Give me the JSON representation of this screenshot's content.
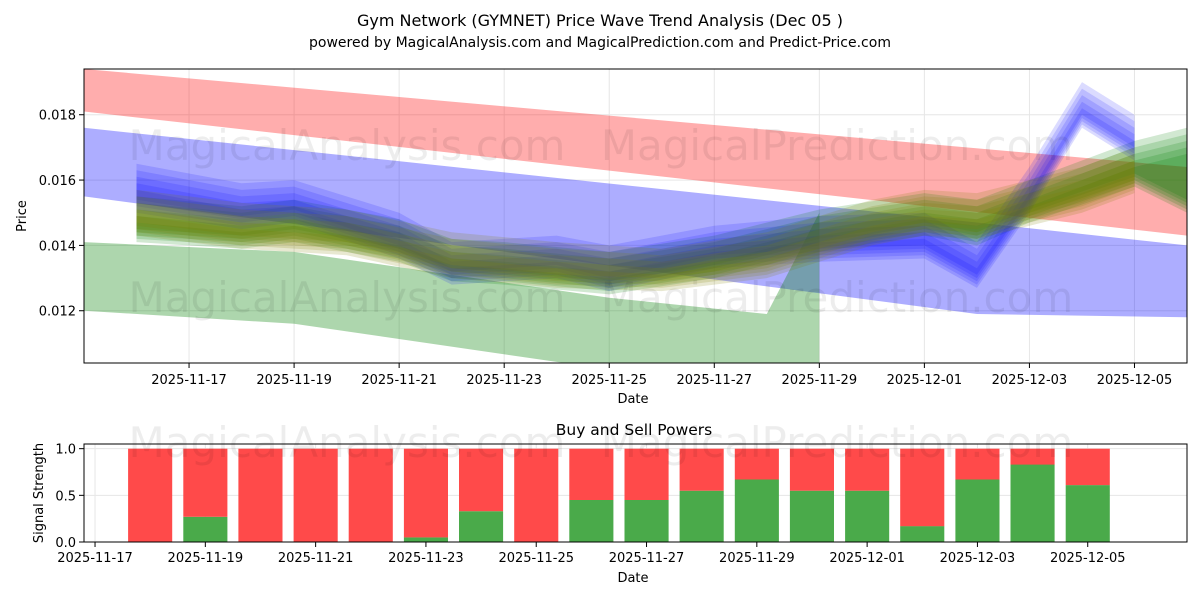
{
  "chart_data": [
    {
      "type": "area",
      "title": "Gym Network (GYMNET) Price Wave Trend Analysis (Dec 05 )",
      "subtitle": "powered by MagicalAnalysis.com and MagicalPrediction.com and Predict-Price.com",
      "xlabel": "Date",
      "ylabel": "Price",
      "x_range": [
        "2025-11-15",
        "2025-12-06"
      ],
      "ylim": [
        0.0104,
        0.0194
      ],
      "x_ticks": [
        "2025-11-17",
        "2025-11-19",
        "2025-11-21",
        "2025-11-23",
        "2025-11-25",
        "2025-11-27",
        "2025-11-29",
        "2025-12-01",
        "2025-12-03",
        "2025-12-05"
      ],
      "y_ticks": [
        "0.012",
        "0.014",
        "0.016",
        "0.018"
      ],
      "grid": true,
      "watermarks": [
        "MagicalAnalysis.com",
        "MagicalPrediction.com",
        "MagicalAnalysis.com",
        "MagicalPrediction.com"
      ],
      "bands": [
        {
          "name": "red-band",
          "color": "#ff0000",
          "opacity": 0.32,
          "x": [
            "2025-11-15",
            "2025-12-06"
          ],
          "upper": [
            0.0194,
            0.0164
          ],
          "lower": [
            0.0181,
            0.0143
          ]
        },
        {
          "name": "blue-band",
          "color": "#0000ff",
          "opacity": 0.32,
          "x": [
            "2025-11-15",
            "2025-12-02",
            "2025-12-06"
          ],
          "upper": [
            0.0176,
            0.0147,
            0.014
          ],
          "lower": [
            0.0155,
            0.0119,
            0.0118
          ]
        },
        {
          "name": "green-low-band",
          "color": "#008000",
          "opacity": 0.32,
          "x": [
            "2025-11-15",
            "2025-11-19",
            "2025-11-25",
            "2025-11-28",
            "2025-11-29"
          ],
          "upper": [
            0.0141,
            0.0138,
            0.0124,
            0.0119,
            0.015
          ],
          "lower": [
            0.012,
            0.0116,
            0.0102,
            0.0097,
            0.0104
          ]
        }
      ],
      "wave_series": [
        {
          "name": "green-wave",
          "color": "#008000",
          "opacity": 0.18,
          "x": [
            "2025-11-16",
            "2025-11-18",
            "2025-11-19",
            "2025-11-21",
            "2025-11-22",
            "2025-11-23",
            "2025-11-25",
            "2025-11-27",
            "2025-11-29",
            "2025-12-01",
            "2025-12-02",
            "2025-12-03",
            "2025-12-05",
            "2025-12-06"
          ],
          "upper": [
            0.0151,
            0.0148,
            0.015,
            0.0144,
            0.0138,
            0.0137,
            0.0134,
            0.0139,
            0.0147,
            0.0152,
            0.015,
            0.0156,
            0.0168,
            0.0172
          ],
          "lower": [
            0.0143,
            0.0141,
            0.0143,
            0.0137,
            0.0131,
            0.013,
            0.0127,
            0.0132,
            0.014,
            0.0145,
            0.0142,
            0.0149,
            0.016,
            0.0152
          ]
        },
        {
          "name": "blue-wave",
          "color": "#0000ff",
          "opacity": 0.14,
          "x": [
            "2025-11-16",
            "2025-11-18",
            "2025-11-19",
            "2025-11-21",
            "2025-11-22",
            "2025-11-24",
            "2025-11-25",
            "2025-11-27",
            "2025-11-29",
            "2025-12-01",
            "2025-12-02",
            "2025-12-03",
            "2025-12-04",
            "2025-12-05"
          ],
          "upper": [
            0.0161,
            0.0155,
            0.0156,
            0.0146,
            0.0137,
            0.0139,
            0.0136,
            0.0142,
            0.0145,
            0.0146,
            0.0137,
            0.016,
            0.0186,
            0.0176
          ],
          "lower": [
            0.0152,
            0.0147,
            0.0149,
            0.0138,
            0.013,
            0.0132,
            0.0128,
            0.0135,
            0.0137,
            0.0138,
            0.0129,
            0.0152,
            0.0178,
            0.0168
          ]
        },
        {
          "name": "olive-wave",
          "color": "#808000",
          "opacity": 0.18,
          "x": [
            "2025-11-16",
            "2025-11-18",
            "2025-11-20",
            "2025-11-22",
            "2025-11-24",
            "2025-11-26",
            "2025-11-28",
            "2025-11-30",
            "2025-12-01",
            "2025-12-02",
            "2025-12-04",
            "2025-12-05"
          ],
          "upper": [
            0.0153,
            0.0149,
            0.0147,
            0.014,
            0.0137,
            0.0135,
            0.014,
            0.015,
            0.0153,
            0.0152,
            0.016,
            0.0166
          ],
          "lower": [
            0.0145,
            0.0141,
            0.0139,
            0.0132,
            0.0129,
            0.0128,
            0.0132,
            0.0142,
            0.0145,
            0.0144,
            0.0152,
            0.0158
          ]
        }
      ]
    },
    {
      "type": "bar",
      "title": "Buy and Sell Powers",
      "xlabel": "Date",
      "ylabel": "Signal Strength",
      "ylim": [
        0,
        1.05
      ],
      "x_range": [
        "2025-11-16.8",
        "2025-12-06.8"
      ],
      "x_ticks": [
        "2025-11-17",
        "2025-11-19",
        "2025-11-21",
        "2025-11-23",
        "2025-11-25",
        "2025-11-27",
        "2025-11-29",
        "2025-12-01",
        "2025-12-03",
        "2025-12-05"
      ],
      "y_ticks": [
        "0.0",
        "0.5",
        "1.0"
      ],
      "grid": true,
      "categories": [
        "2025-11-18",
        "2025-11-19",
        "2025-11-20",
        "2025-11-21",
        "2025-11-22",
        "2025-11-23",
        "2025-11-24",
        "2025-11-25",
        "2025-11-26",
        "2025-11-27",
        "2025-11-28",
        "2025-11-29",
        "2025-11-30",
        "2025-12-01",
        "2025-12-02",
        "2025-12-03",
        "2025-12-04",
        "2025-12-05"
      ],
      "series": [
        {
          "name": "Buy",
          "color": "#4aaa4a",
          "values": [
            0.0,
            0.27,
            0.0,
            0.0,
            0.0,
            0.05,
            0.33,
            0.0,
            0.45,
            0.45,
            0.55,
            0.67,
            0.55,
            0.55,
            0.17,
            0.67,
            0.83,
            0.61
          ]
        },
        {
          "name": "Sell",
          "color": "#ff4a4a",
          "values": [
            1.0,
            0.73,
            1.0,
            1.0,
            1.0,
            0.95,
            0.67,
            1.0,
            0.55,
            0.55,
            0.45,
            0.33,
            0.45,
            0.45,
            0.83,
            0.33,
            0.17,
            0.39
          ]
        }
      ],
      "x_tick_labels": [
        "2025-11-17",
        "2025-11-19",
        "2025-11-21",
        "2025-11-23",
        "2025-11-25",
        "2025-11-27",
        "2025-11-29",
        "2025-12-01",
        "2025-12-03",
        "2025-12-05"
      ],
      "watermarks": [
        "MagicalAnalysis.com",
        "MagicalPrediction.com"
      ]
    }
  ]
}
